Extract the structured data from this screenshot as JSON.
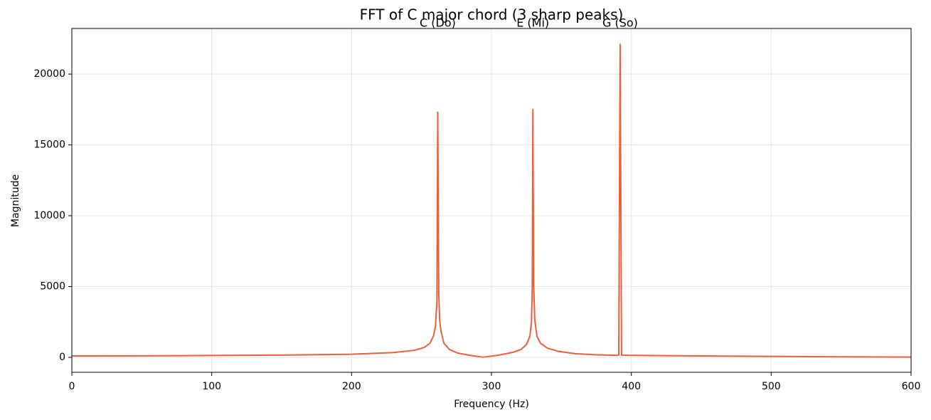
{
  "chart_data": {
    "type": "line",
    "title": "FFT of C major chord (3 sharp peaks)",
    "x_label": "Frequency (Hz)",
    "y_label": "Magnitude",
    "color": "#e8603c",
    "x": [
      0,
      50,
      100,
      150,
      200,
      230,
      245,
      252,
      256,
      258.5,
      260,
      261,
      261.6,
      262.3,
      263,
      264,
      266,
      270,
      276,
      284,
      294,
      305,
      315,
      321,
      325,
      327.5,
      328.6,
      329.2,
      329.6,
      330.2,
      331,
      332.5,
      335,
      340,
      348,
      360,
      375,
      390,
      391,
      392,
      393,
      400,
      450,
      500,
      550,
      600
    ],
    "values": [
      100,
      110,
      130,
      160,
      220,
      340,
      500,
      700,
      1000,
      1500,
      2200,
      4000,
      17300,
      4600,
      2600,
      1800,
      1000,
      550,
      300,
      150,
      10,
      150,
      350,
      550,
      900,
      1500,
      2500,
      5000,
      17500,
      5000,
      2600,
      1500,
      1000,
      650,
      420,
      260,
      180,
      140,
      150,
      22100,
      150,
      140,
      100,
      70,
      40,
      20
    ],
    "xlim": [
      0,
      600
    ],
    "ylim": [
      -1055,
      23220
    ],
    "xticks": [
      0,
      100,
      200,
      300,
      400,
      500,
      600
    ],
    "yticks": [
      0,
      5000,
      10000,
      15000,
      20000
    ],
    "grid": true,
    "annotations": [
      {
        "text": "C (Do)",
        "x": 261.6,
        "y": 23560
      },
      {
        "text": "E (Mi)",
        "x": 329.6,
        "y": 23560
      },
      {
        "text": "G (So)",
        "x": 392,
        "y": 23560
      }
    ]
  }
}
